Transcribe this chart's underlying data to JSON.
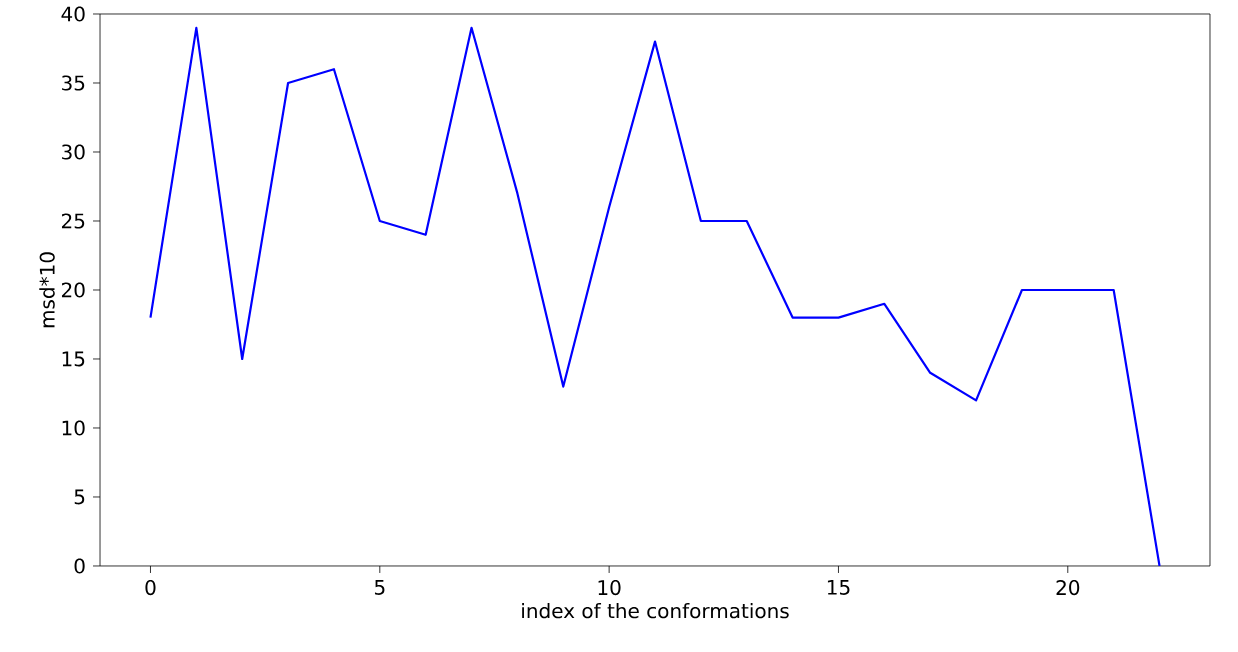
{
  "chart_data": {
    "type": "line",
    "xlabel": "index of the conformations",
    "ylabel": "msd*10",
    "x": [
      0,
      1,
      2,
      3,
      4,
      5,
      6,
      7,
      8,
      9,
      10,
      11,
      12,
      13,
      14,
      15,
      16,
      17,
      18,
      19,
      20,
      21,
      22
    ],
    "series": [
      {
        "color": "#0000ff",
        "values": [
          18,
          39,
          15,
          35,
          36,
          25,
          24,
          39,
          27,
          13,
          26,
          38,
          25,
          25,
          18,
          18,
          19,
          14,
          12,
          20,
          20,
          20,
          0
        ]
      }
    ],
    "xlim": [
      -1.1,
      23.1
    ],
    "ylim": [
      0,
      40
    ],
    "xticks": [
      0,
      5,
      10,
      15,
      20
    ],
    "yticks": [
      0,
      5,
      10,
      15,
      20,
      25,
      30,
      35,
      40
    ],
    "grid": false,
    "marker": "none",
    "line_style": "solid"
  }
}
